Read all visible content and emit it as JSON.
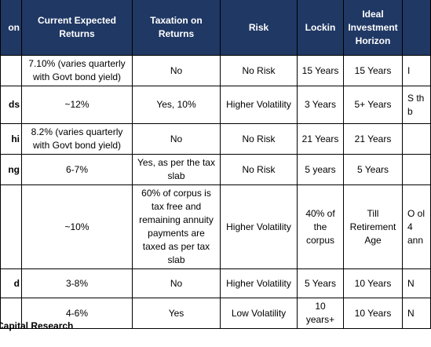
{
  "table": {
    "header": [
      "on",
      "Current Expected Returns",
      "Taxation on Returns",
      "Risk",
      "Lockin",
      "Ideal Investment Horizon"
    ],
    "rows": [
      {
        "returns": "7.10% (varies quarterly with Govt bond yield)",
        "tax": "No",
        "risk": "No Risk",
        "lockin": "15 Years",
        "horizon": "15 Years",
        "last": "I"
      },
      {
        "name": "ds",
        "returns": "~12%",
        "tax": "Yes, 10%",
        "risk": "Higher Volatility",
        "lockin": "3 Years",
        "horizon": "5+ Years",
        "last": "S th b"
      },
      {
        "name": "hi",
        "returns": "8.2% (varies quarterly with Govt bond yield)",
        "tax": "No",
        "risk": "No Risk",
        "lockin": "21 Years",
        "horizon": "21 Years"
      },
      {
        "name": "ng",
        "returns": "6-7%",
        "tax": "Yes, as per the tax slab",
        "risk": "No Risk",
        "lockin": "5 years",
        "horizon": "5 Years"
      },
      {
        "returns": "~10%",
        "tax": "60% of corpus is tax free and remaining annuity payments are taxed as per tax slab",
        "risk": "Higher Volatility",
        "lockin": "40% of the corpus",
        "horizon": "Till Retirement Age",
        "last": "O ol 4 ann"
      },
      {
        "name": "d",
        "returns": "3-8%",
        "tax": "No",
        "risk": "Higher Volatility",
        "lockin": "5 Years",
        "horizon": "10 Years",
        "last": "N"
      },
      {
        "returns": "4-6%",
        "tax": "Yes",
        "risk": "Low Volatility",
        "lockin": "10 years+",
        "horizon": "10 Years",
        "last": "N"
      }
    ]
  },
  "footer": {
    "source": "Capital Research"
  }
}
